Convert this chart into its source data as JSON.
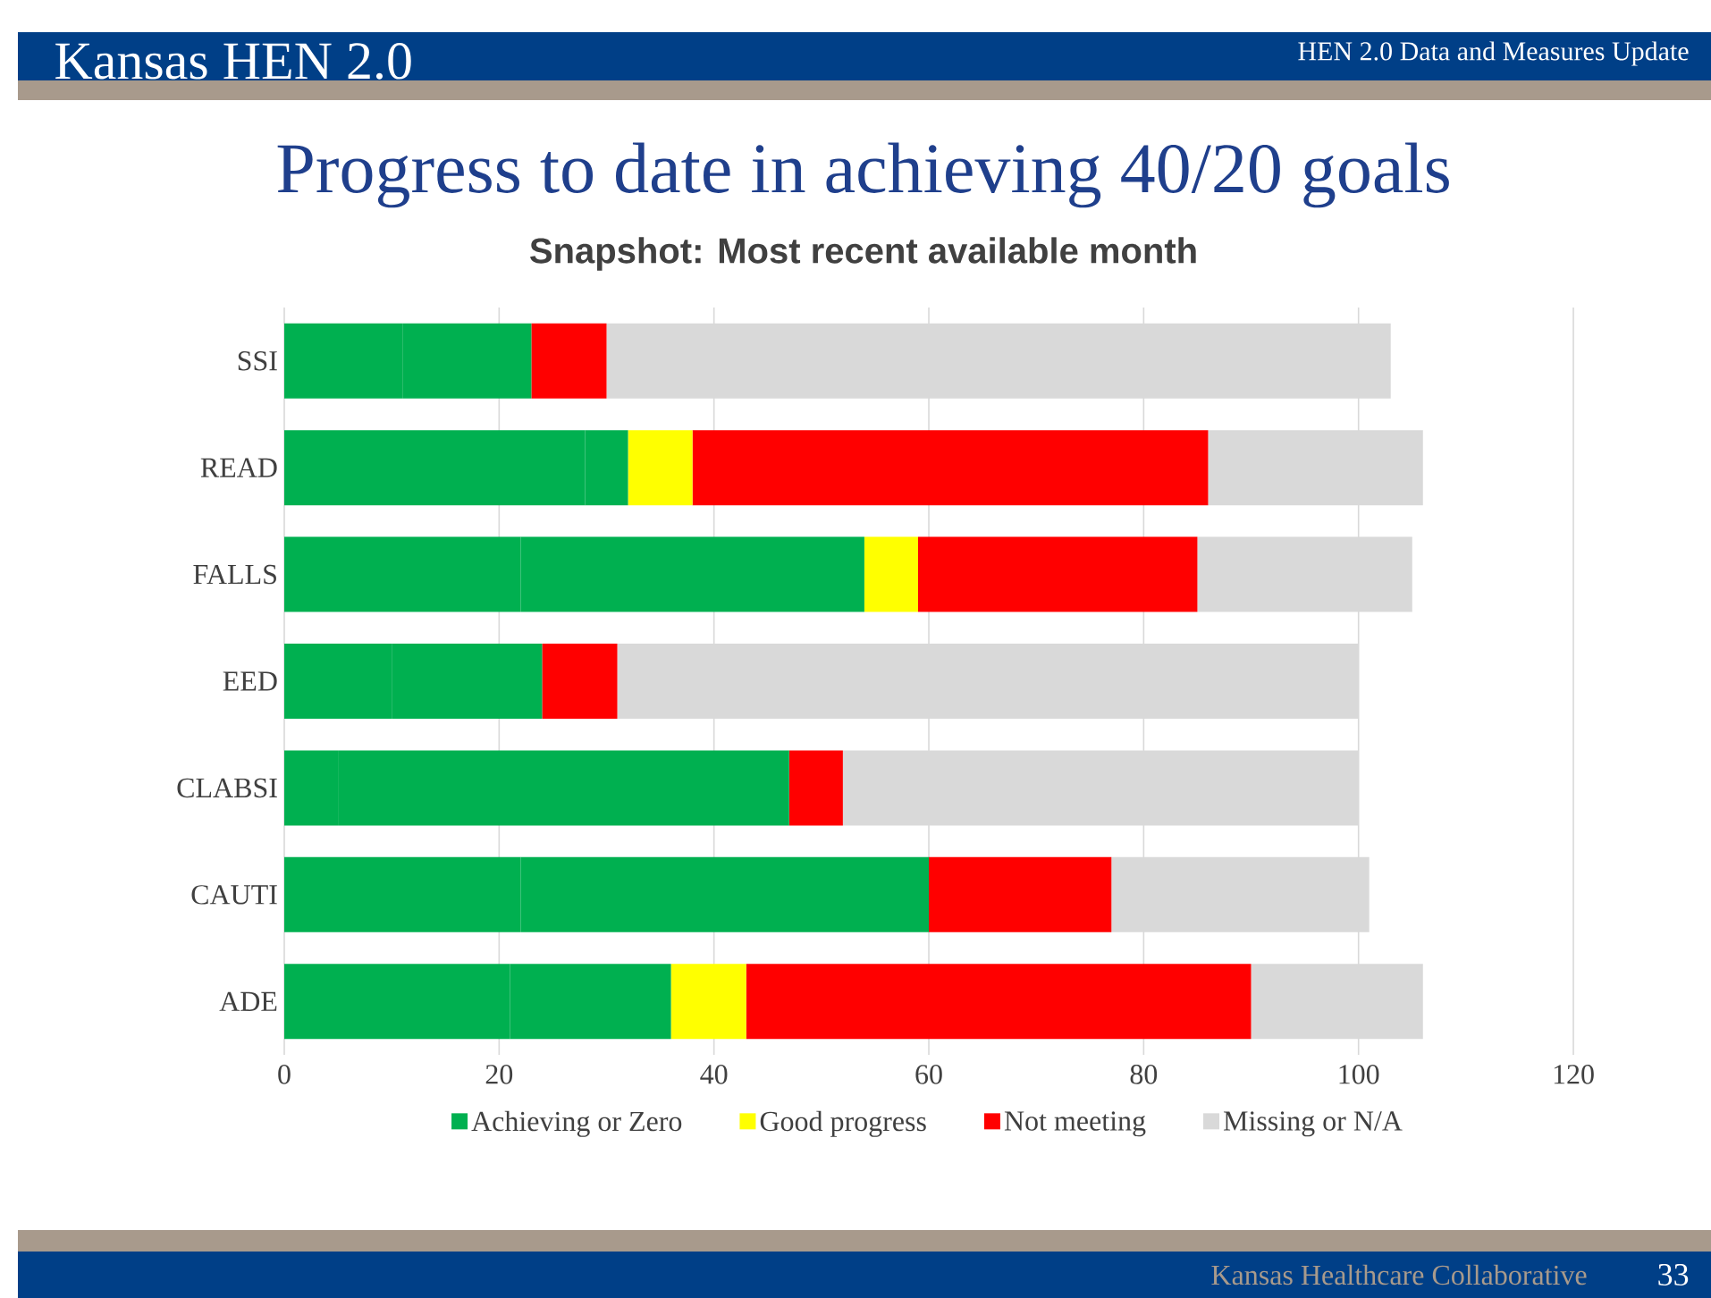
{
  "chart_data": {
    "type": "bar",
    "orientation": "horizontal",
    "stacked": true,
    "title": "Progress to date in achieving 40/20 goals",
    "subtitle": "Snapshot: Most recent available month",
    "categories": [
      "SSI",
      "READ",
      "FALLS",
      "EED",
      "CLABSI",
      "CAUTI",
      "ADE"
    ],
    "series": [
      {
        "name": "Achieving or Zero",
        "color": "#00b050",
        "values": [
          11,
          28,
          22,
          10,
          5,
          22,
          21
        ]
      },
      {
        "color": "#00b050",
        "values": [
          12,
          4,
          32,
          14,
          42,
          38,
          15
        ]
      },
      {
        "name": "Good progress",
        "color": "#ffff00",
        "values": [
          0,
          6,
          5,
          0,
          0,
          0,
          7
        ]
      },
      {
        "name": "Not meeting",
        "color": "#ff0000",
        "values": [
          7,
          48,
          26,
          7,
          5,
          17,
          47
        ]
      },
      {
        "name": "Missing or N/A",
        "color": "#d9d9d9",
        "values": [
          73,
          20,
          20,
          69,
          48,
          24,
          16
        ]
      }
    ],
    "xlim": [
      0,
      120
    ],
    "xticks": [
      0,
      20,
      40,
      60,
      80,
      100,
      120
    ],
    "grid": "x",
    "legend": "bottom",
    "annotations": [
      "Kansas HEN 2.0",
      "HEN 2.0 Data and Measures Update",
      "Kansas Healthcare Collaborative",
      "33"
    ]
  }
}
